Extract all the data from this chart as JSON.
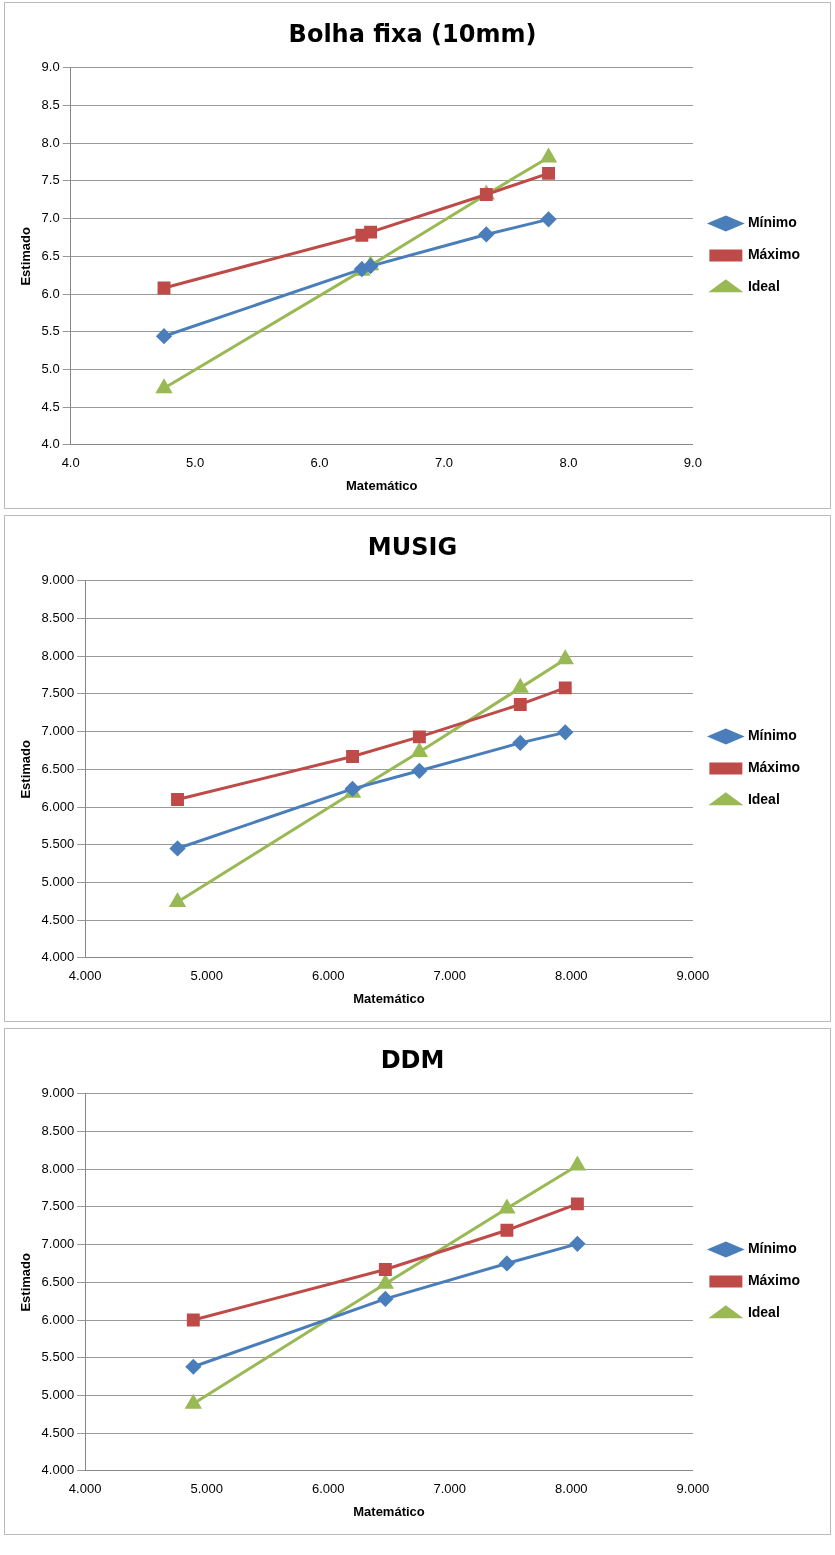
{
  "chart_data": [
    {
      "type": "line",
      "title": "Bolha fixa (10mm)",
      "xlabel": "Matemático",
      "ylabel": "Estimado",
      "legend": "right",
      "grid": "y",
      "xlim": [
        4,
        9
      ],
      "xticks": [
        {
          "value": 4,
          "label": "4.0"
        },
        {
          "value": 5,
          "label": "5.0"
        },
        {
          "value": 6,
          "label": "6.0"
        },
        {
          "value": 7,
          "label": "7.0"
        },
        {
          "value": 8,
          "label": "8.0"
        },
        {
          "value": 9,
          "label": "9.0"
        }
      ],
      "ylim": [
        4,
        9
      ],
      "yticks": [
        {
          "value": 4,
          "label": "4.0"
        },
        {
          "value": 4.5,
          "label": "4.5"
        },
        {
          "value": 5,
          "label": "5.0"
        },
        {
          "value": 5.5,
          "label": "5.5"
        },
        {
          "value": 6,
          "label": "6.0"
        },
        {
          "value": 6.5,
          "label": "6.5"
        },
        {
          "value": 7,
          "label": "7.0"
        },
        {
          "value": 7.5,
          "label": "7.5"
        },
        {
          "value": 8,
          "label": "8.0"
        },
        {
          "value": 8.5,
          "label": "8.5"
        },
        {
          "value": 9,
          "label": "9.0"
        }
      ],
      "series": [
        {
          "name": "Mínimo",
          "color": "#4a7ebb",
          "marker": "diamond",
          "x": [
            4.75,
            6.34,
            6.41,
            7.34,
            7.84
          ],
          "values": [
            5.44,
            6.33,
            6.37,
            6.79,
            6.99
          ]
        },
        {
          "name": "Máximo",
          "color": "#be4b48",
          "marker": "square",
          "x": [
            4.75,
            6.34,
            6.41,
            7.34,
            7.84
          ],
          "values": [
            6.08,
            6.78,
            6.82,
            7.32,
            7.6
          ]
        },
        {
          "name": "Ideal",
          "color": "#98b954",
          "marker": "triangle",
          "x": [
            4.75,
            6.34,
            6.41,
            7.34,
            7.84
          ],
          "values": [
            4.75,
            6.31,
            6.38,
            7.32,
            7.81
          ]
        }
      ]
    },
    {
      "type": "line",
      "title": "MUSIG",
      "xlabel": "Matemático",
      "ylabel": "Estimado",
      "legend": "right",
      "grid": "y",
      "xlim": [
        4,
        9
      ],
      "xticks": [
        {
          "value": 4,
          "label": "4.000"
        },
        {
          "value": 5,
          "label": "5.000"
        },
        {
          "value": 6,
          "label": "6.000"
        },
        {
          "value": 7,
          "label": "7.000"
        },
        {
          "value": 8,
          "label": "8.000"
        },
        {
          "value": 9,
          "label": "9.000"
        }
      ],
      "ylim": [
        4,
        9
      ],
      "yticks": [
        {
          "value": 4,
          "label": "4.000"
        },
        {
          "value": 4.5,
          "label": "4.500"
        },
        {
          "value": 5,
          "label": "5.000"
        },
        {
          "value": 5.5,
          "label": "5.500"
        },
        {
          "value": 6,
          "label": "6.000"
        },
        {
          "value": 6.5,
          "label": "6.500"
        },
        {
          "value": 7,
          "label": "7.000"
        },
        {
          "value": 7.5,
          "label": "7.500"
        },
        {
          "value": 8,
          "label": "8.000"
        },
        {
          "value": 8.5,
          "label": "8.500"
        },
        {
          "value": 9,
          "label": "9.000"
        }
      ],
      "series": [
        {
          "name": "Mínimo",
          "color": "#4a7ebb",
          "marker": "diamond",
          "x": [
            4.76,
            6.2,
            6.75,
            7.58,
            7.95
          ],
          "values": [
            5.45,
            6.24,
            6.48,
            6.85,
            6.99
          ]
        },
        {
          "name": "Máximo",
          "color": "#be4b48",
          "marker": "square",
          "x": [
            4.76,
            6.2,
            6.75,
            7.58,
            7.95
          ],
          "values": [
            6.1,
            6.67,
            6.93,
            7.36,
            7.58
          ]
        },
        {
          "name": "Ideal",
          "color": "#98b954",
          "marker": "triangle",
          "x": [
            4.76,
            6.2,
            6.75,
            7.58,
            7.95
          ],
          "values": [
            4.74,
            6.19,
            6.73,
            7.58,
            7.96
          ]
        }
      ]
    },
    {
      "type": "line",
      "title": "DDM",
      "xlabel": "Matemático",
      "ylabel": "Estimado",
      "legend": "right",
      "grid": "y",
      "xlim": [
        4,
        9
      ],
      "xticks": [
        {
          "value": 4,
          "label": "4.000"
        },
        {
          "value": 5,
          "label": "5.000"
        },
        {
          "value": 6,
          "label": "6.000"
        },
        {
          "value": 7,
          "label": "7.000"
        },
        {
          "value": 8,
          "label": "8.000"
        },
        {
          "value": 9,
          "label": "9.000"
        }
      ],
      "ylim": [
        4,
        9
      ],
      "yticks": [
        {
          "value": 4,
          "label": "4.000"
        },
        {
          "value": 4.5,
          "label": "4.500"
        },
        {
          "value": 5,
          "label": "5.000"
        },
        {
          "value": 5.5,
          "label": "5.500"
        },
        {
          "value": 6,
          "label": "6.000"
        },
        {
          "value": 6.5,
          "label": "6.500"
        },
        {
          "value": 7,
          "label": "7.000"
        },
        {
          "value": 7.5,
          "label": "7.500"
        },
        {
          "value": 8,
          "label": "8.000"
        },
        {
          "value": 8.5,
          "label": "8.500"
        },
        {
          "value": 9,
          "label": "9.000"
        }
      ],
      "series": [
        {
          "name": "Mínimo",
          "color": "#4a7ebb",
          "marker": "diamond",
          "x": [
            4.89,
            6.47,
            7.47,
            8.05
          ],
          "values": [
            5.38,
            6.28,
            6.75,
            7.01
          ]
        },
        {
          "name": "Máximo",
          "color": "#be4b48",
          "marker": "square",
          "x": [
            4.89,
            6.47,
            7.47,
            8.05
          ],
          "values": [
            6.0,
            6.67,
            7.19,
            7.54
          ]
        },
        {
          "name": "Ideal",
          "color": "#98b954",
          "marker": "triangle",
          "x": [
            4.89,
            6.47,
            7.47,
            8.05
          ],
          "values": [
            4.89,
            6.48,
            7.48,
            8.05
          ]
        }
      ]
    }
  ]
}
